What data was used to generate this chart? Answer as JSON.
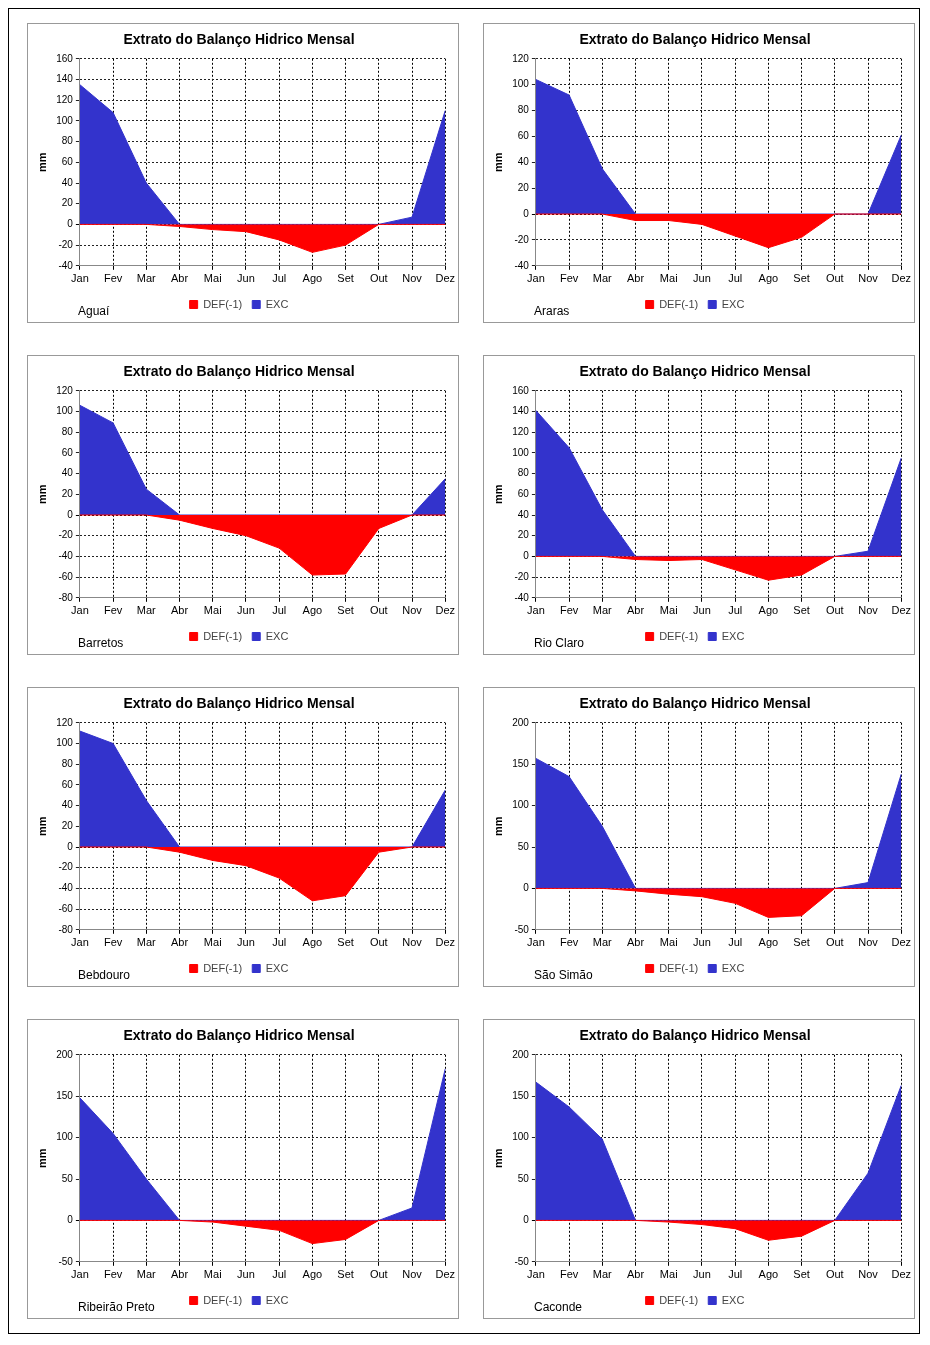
{
  "chart_data": [
    {
      "type": "area",
      "title": "Extrato do Balanço Hidrico Mensal",
      "ylabel": "mm",
      "annotations": [
        "Aguaí"
      ],
      "categories": [
        "Jan",
        "Fev",
        "Mar",
        "Abr",
        "Mai",
        "Jun",
        "Jul",
        "Ago",
        "Set",
        "Out",
        "Nov",
        "Dez"
      ],
      "ylim": [
        -40,
        160
      ],
      "yticks": [
        -40,
        -20,
        0,
        20,
        40,
        60,
        80,
        100,
        120,
        140,
        160
      ],
      "grid": true,
      "legend": "bottom",
      "marker": "none",
      "series": [
        {
          "name": "DEF(-1)",
          "color": "#ff0000",
          "values": [
            0,
            0,
            0,
            -2,
            -5,
            -7,
            -15,
            -27,
            -20,
            0,
            0,
            0
          ]
        },
        {
          "name": "EXC",
          "color": "#3333cc",
          "values": [
            135,
            108,
            40,
            0,
            0,
            0,
            0,
            0,
            0,
            0,
            7,
            110
          ]
        }
      ]
    },
    {
      "type": "area",
      "title": "Extrato do Balanço Hidrico Mensal",
      "ylabel": "mm",
      "annotations": [
        "Araras"
      ],
      "categories": [
        "Jan",
        "Fev",
        "Mar",
        "Abr",
        "Mai",
        "Jun",
        "Jul",
        "Ago",
        "Set",
        "Out",
        "Nov",
        "Dez"
      ],
      "ylim": [
        -40,
        120
      ],
      "yticks": [
        -40,
        -20,
        0,
        20,
        40,
        60,
        80,
        100,
        120
      ],
      "grid": true,
      "legend": "bottom",
      "marker": "none",
      "series": [
        {
          "name": "DEF(-1)",
          "color": "#ff0000",
          "values": [
            0,
            0,
            0,
            -5,
            -5,
            -8,
            -17,
            -26,
            -18,
            0,
            0,
            0
          ]
        },
        {
          "name": "EXC",
          "color": "#3333cc",
          "values": [
            104,
            92,
            35,
            0,
            0,
            0,
            0,
            0,
            0,
            0,
            0,
            61
          ]
        }
      ]
    },
    {
      "type": "area",
      "title": "Extrato do Balanço Hidrico Mensal",
      "ylabel": "mm",
      "annotations": [
        "Barretos"
      ],
      "categories": [
        "Jan",
        "Fev",
        "Mar",
        "Abr",
        "Mai",
        "Jun",
        "Jul",
        "Ago",
        "Set",
        "Out",
        "Nov",
        "Dez"
      ],
      "ylim": [
        -80,
        120
      ],
      "yticks": [
        -80,
        -60,
        -40,
        -20,
        0,
        20,
        40,
        60,
        80,
        100,
        120
      ],
      "grid": true,
      "legend": "bottom",
      "marker": "none",
      "series": [
        {
          "name": "DEF(-1)",
          "color": "#ff0000",
          "values": [
            0,
            0,
            0,
            -5,
            -13,
            -20,
            -32,
            -58,
            -57,
            -13,
            0,
            0
          ]
        },
        {
          "name": "EXC",
          "color": "#3333cc",
          "values": [
            106,
            89,
            25,
            0,
            0,
            0,
            0,
            0,
            0,
            0,
            0,
            35
          ]
        }
      ]
    },
    {
      "type": "area",
      "title": "Extrato do Balanço Hidrico Mensal",
      "ylabel": "mm",
      "annotations": [
        "Rio Claro"
      ],
      "categories": [
        "Jan",
        "Fev",
        "Mar",
        "Abr",
        "Mai",
        "Jun",
        "Jul",
        "Ago",
        "Set",
        "Out",
        "Nov",
        "Dez"
      ],
      "ylim": [
        -40,
        160
      ],
      "yticks": [
        -40,
        -20,
        0,
        20,
        40,
        60,
        80,
        100,
        120,
        140,
        160
      ],
      "grid": true,
      "legend": "bottom",
      "marker": "none",
      "series": [
        {
          "name": "DEF(-1)",
          "color": "#ff0000",
          "values": [
            0,
            0,
            0,
            -3,
            -4,
            -3,
            -13,
            -23,
            -18,
            0,
            0,
            0
          ]
        },
        {
          "name": "EXC",
          "color": "#3333cc",
          "values": [
            141,
            105,
            45,
            0,
            0,
            0,
            0,
            0,
            0,
            0,
            5,
            95
          ]
        }
      ]
    },
    {
      "type": "area",
      "title": "Extrato do Balanço Hidrico Mensal",
      "ylabel": "mm",
      "annotations": [
        "Bebdouro"
      ],
      "categories": [
        "Jan",
        "Fev",
        "Mar",
        "Abr",
        "Mai",
        "Jun",
        "Jul",
        "Ago",
        "Set",
        "Out",
        "Nov",
        "Dez"
      ],
      "ylim": [
        -80,
        120
      ],
      "yticks": [
        -80,
        -60,
        -40,
        -20,
        0,
        20,
        40,
        60,
        80,
        100,
        120
      ],
      "grid": true,
      "legend": "bottom",
      "marker": "none",
      "series": [
        {
          "name": "DEF(-1)",
          "color": "#ff0000",
          "values": [
            0,
            0,
            0,
            -5,
            -13,
            -18,
            -30,
            -52,
            -47,
            -5,
            0,
            0
          ]
        },
        {
          "name": "EXC",
          "color": "#3333cc",
          "values": [
            112,
            100,
            45,
            0,
            0,
            0,
            0,
            0,
            0,
            0,
            0,
            55
          ]
        }
      ]
    },
    {
      "type": "area",
      "title": "Extrato do Balanço Hidrico Mensal",
      "ylabel": "mm",
      "annotations": [
        "São Simão"
      ],
      "categories": [
        "Jan",
        "Fev",
        "Mar",
        "Abr",
        "Mai",
        "Jun",
        "Jul",
        "Ago",
        "Set",
        "Out",
        "Nov",
        "Dez"
      ],
      "ylim": [
        -50,
        200
      ],
      "yticks": [
        -50,
        0,
        50,
        100,
        150,
        200
      ],
      "grid": true,
      "legend": "bottom",
      "marker": "none",
      "series": [
        {
          "name": "DEF(-1)",
          "color": "#ff0000",
          "values": [
            0,
            0,
            0,
            -3,
            -7,
            -10,
            -18,
            -35,
            -33,
            0,
            0,
            0
          ]
        },
        {
          "name": "EXC",
          "color": "#3333cc",
          "values": [
            157,
            135,
            75,
            0,
            0,
            0,
            0,
            0,
            0,
            0,
            7,
            138
          ]
        }
      ]
    },
    {
      "type": "area",
      "title": "Extrato do Balanço Hidrico Mensal",
      "ylabel": "mm",
      "annotations": [
        "Ribeirão Preto"
      ],
      "categories": [
        "Jan",
        "Fev",
        "Mar",
        "Abr",
        "Mai",
        "Jun",
        "Jul",
        "Ago",
        "Set",
        "Out",
        "Nov",
        "Dez"
      ],
      "ylim": [
        -50,
        200
      ],
      "yticks": [
        -50,
        0,
        50,
        100,
        150,
        200
      ],
      "grid": true,
      "legend": "bottom",
      "marker": "none",
      "series": [
        {
          "name": "DEF(-1)",
          "color": "#ff0000",
          "values": [
            0,
            0,
            0,
            0,
            -2,
            -7,
            -12,
            -28,
            -23,
            0,
            0,
            0
          ]
        },
        {
          "name": "EXC",
          "color": "#3333cc",
          "values": [
            148,
            105,
            50,
            0,
            0,
            0,
            0,
            0,
            0,
            0,
            15,
            183
          ]
        }
      ]
    },
    {
      "type": "area",
      "title": "Extrato do Balanço Hidrico Mensal",
      "ylabel": "mm",
      "annotations": [
        "Caconde"
      ],
      "categories": [
        "Jan",
        "Fev",
        "Mar",
        "Abr",
        "Mai",
        "Jun",
        "Jul",
        "Ago",
        "Set",
        "Out",
        "Nov",
        "Dez"
      ],
      "ylim": [
        -50,
        200
      ],
      "yticks": [
        -50,
        0,
        50,
        100,
        150,
        200
      ],
      "grid": true,
      "legend": "bottom",
      "marker": "none",
      "series": [
        {
          "name": "DEF(-1)",
          "color": "#ff0000",
          "values": [
            0,
            0,
            0,
            0,
            -2,
            -5,
            -10,
            -24,
            -19,
            0,
            0,
            0
          ]
        },
        {
          "name": "EXC",
          "color": "#3333cc",
          "values": [
            167,
            137,
            98,
            0,
            0,
            0,
            0,
            0,
            0,
            0,
            57,
            163
          ]
        }
      ]
    }
  ]
}
